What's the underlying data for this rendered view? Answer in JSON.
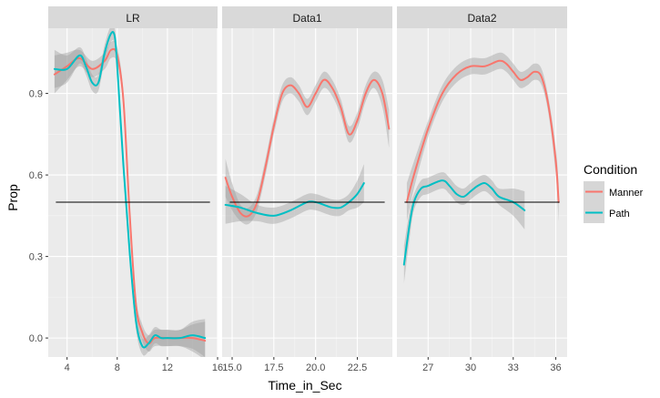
{
  "chart_data": {
    "type": "line",
    "xlabel": "Time_in_Sec",
    "ylabel": "Prop",
    "reference_line": 0.5,
    "ylim": [
      -0.07,
      1.14
    ],
    "y_ticks": [
      0.0,
      0.3,
      0.6,
      0.9
    ],
    "y_tick_labels": [
      "0.0",
      "0.3",
      "0.6",
      "0.9"
    ],
    "legend": {
      "title": "Condition",
      "position": "right",
      "entries": [
        {
          "label": "Manner",
          "color": "#F8766D"
        },
        {
          "label": "Path",
          "color": "#00BFC4"
        }
      ]
    },
    "facets": [
      {
        "title": "LR",
        "xlim": [
          2.5,
          16.0
        ],
        "x_ticks": [
          4,
          8,
          12,
          16
        ],
        "x_tick_labels": [
          "4",
          "8",
          "12",
          "16"
        ],
        "series": [
          {
            "name": "Manner",
            "x": [
              3.0,
              4.0,
              5.0,
              6.0,
              7.0,
              7.5,
              8.0,
              8.5,
              9.0,
              9.5,
              10.0,
              10.5,
              11.0,
              12.0,
              13.0,
              14.0,
              15.0
            ],
            "y": [
              0.97,
              1.0,
              1.03,
              0.99,
              1.02,
              1.06,
              1.04,
              0.87,
              0.45,
              0.12,
              0.02,
              -0.02,
              0.0,
              0.0,
              0.0,
              0.0,
              -0.01
            ]
          },
          {
            "name": "Path",
            "x": [
              3.0,
              4.0,
              5.0,
              5.5,
              6.0,
              6.5,
              7.0,
              7.5,
              7.8,
              8.0,
              8.5,
              9.0,
              9.5,
              10.0,
              10.5,
              11.0,
              11.5,
              12.0,
              13.0,
              14.0,
              15.0
            ],
            "y": [
              0.99,
              0.99,
              1.04,
              1.0,
              0.94,
              0.94,
              1.05,
              1.12,
              1.11,
              1.0,
              0.63,
              0.31,
              0.06,
              -0.03,
              -0.02,
              0.01,
              0.0,
              0.0,
              0.0,
              0.01,
              0.0
            ]
          }
        ]
      },
      {
        "title": "Data1",
        "xlim": [
          14.4,
          24.6
        ],
        "x_ticks": [
          15.0,
          17.5,
          20.0,
          22.5
        ],
        "x_tick_labels": [
          "15.0",
          "17.5",
          "20.0",
          "22.5"
        ],
        "series": [
          {
            "name": "Manner",
            "x": [
              14.6,
              15.0,
              15.5,
              16.0,
              16.5,
              17.0,
              17.5,
              18.0,
              18.5,
              19.0,
              19.5,
              20.0,
              20.5,
              21.0,
              21.5,
              22.0,
              22.5,
              23.0,
              23.5,
              24.0,
              24.4
            ],
            "y": [
              0.59,
              0.52,
              0.46,
              0.45,
              0.5,
              0.63,
              0.78,
              0.9,
              0.93,
              0.9,
              0.85,
              0.9,
              0.95,
              0.92,
              0.85,
              0.75,
              0.8,
              0.9,
              0.95,
              0.9,
              0.77
            ]
          },
          {
            "name": "Path",
            "x": [
              14.6,
              15.5,
              16.5,
              17.5,
              18.5,
              19.5,
              20.0,
              20.5,
              21.0,
              21.5,
              22.0,
              22.5,
              22.9
            ],
            "y": [
              0.49,
              0.48,
              0.46,
              0.45,
              0.47,
              0.5,
              0.5,
              0.49,
              0.48,
              0.48,
              0.5,
              0.53,
              0.57
            ]
          }
        ]
      },
      {
        "title": "Data2",
        "xlim": [
          24.8,
          36.8
        ],
        "x_ticks": [
          27,
          30,
          33,
          36
        ],
        "x_tick_labels": [
          "27",
          "30",
          "33",
          "36"
        ],
        "series": [
          {
            "name": "Manner",
            "x": [
              25.5,
              26.0,
              27.0,
              28.0,
              29.0,
              30.0,
              31.0,
              32.0,
              32.5,
              33.0,
              33.5,
              34.0,
              34.5,
              35.0,
              35.5,
              36.0,
              36.2
            ],
            "y": [
              0.5,
              0.6,
              0.77,
              0.9,
              0.97,
              1.0,
              1.0,
              1.02,
              1.01,
              0.98,
              0.95,
              0.96,
              0.98,
              0.96,
              0.85,
              0.65,
              0.5
            ]
          },
          {
            "name": "Path",
            "x": [
              25.3,
              25.7,
              26.0,
              26.5,
              27.0,
              28.0,
              28.5,
              29.0,
              29.5,
              30.0,
              30.5,
              31.0,
              31.5,
              32.0,
              33.0,
              33.8
            ],
            "y": [
              0.27,
              0.42,
              0.5,
              0.55,
              0.56,
              0.58,
              0.56,
              0.53,
              0.52,
              0.54,
              0.56,
              0.57,
              0.55,
              0.52,
              0.5,
              0.47
            ]
          }
        ]
      }
    ]
  }
}
